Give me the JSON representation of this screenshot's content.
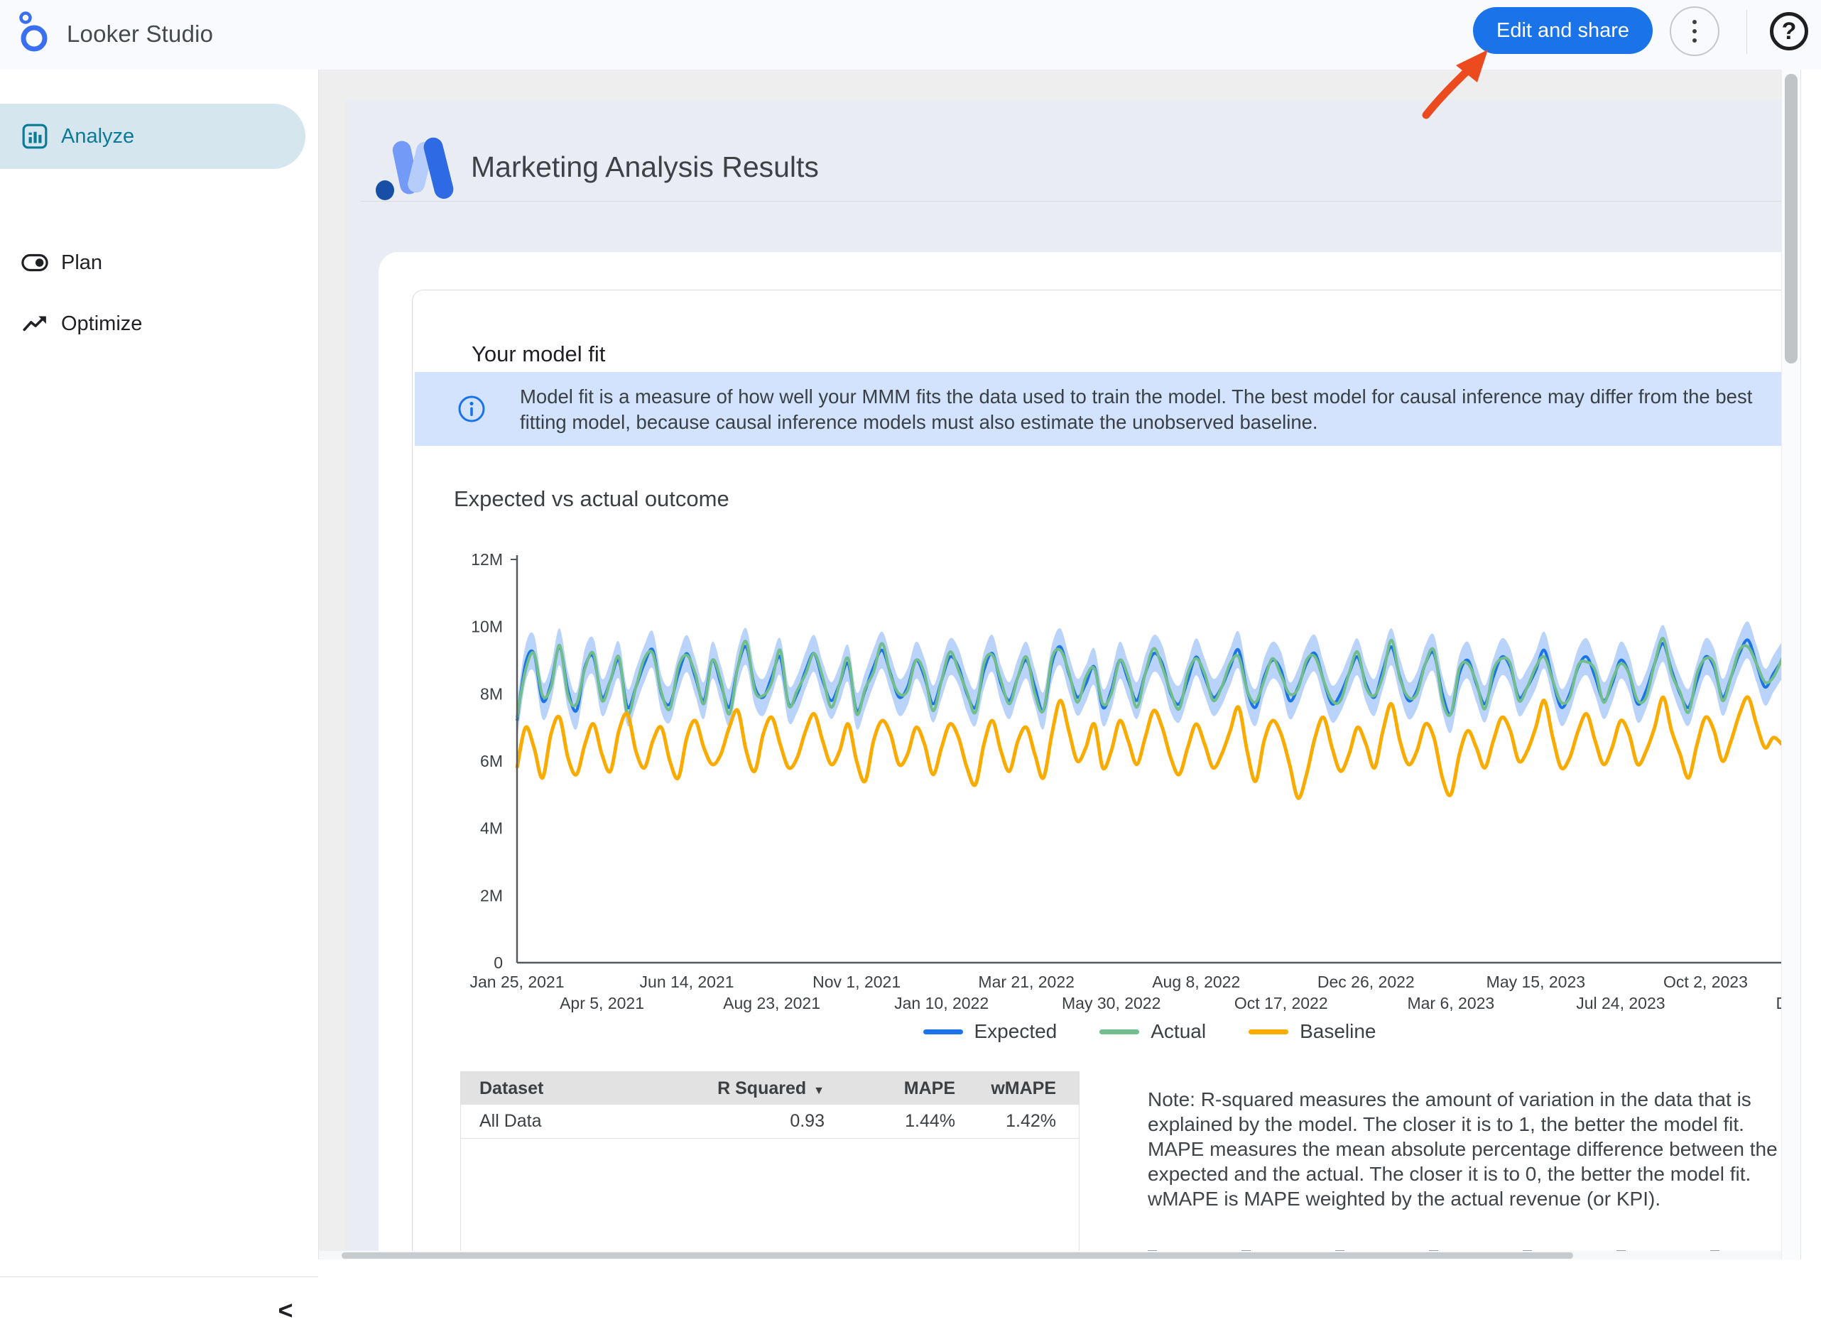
{
  "topbar": {
    "app_title": "Looker Studio",
    "edit_share_label": "Edit and share",
    "help_glyph": "?"
  },
  "sidebar": {
    "items": [
      {
        "label": "Analyze",
        "icon": "bar-chart-icon",
        "selected": true
      },
      {
        "label": "Plan",
        "icon": "toggle-icon",
        "selected": false
      },
      {
        "label": "Optimize",
        "icon": "trending-up-icon",
        "selected": false
      }
    ],
    "collapse_glyph": "<"
  },
  "report": {
    "title": "Marketing Analysis Results"
  },
  "model_fit": {
    "title": "Your model fit",
    "info_text": "Model fit is a measure of how well your MMM fits the data used to train the model. The best model for causal inference may differ from the best fitting model, because causal inference models must also estimate the unobserved baseline."
  },
  "chart_data": {
    "type": "line",
    "title": "Expected vs actual outcome",
    "units": "millions",
    "ylim": [
      0,
      12
    ],
    "y_ticks": [
      "12M",
      "10M",
      "8M",
      "6M",
      "4M",
      "2M",
      "0"
    ],
    "x_ticks_row1": {
      "week_index": [
        0,
        20,
        40,
        60,
        80,
        100,
        120,
        140
      ],
      "labels": [
        "Jan 25, 2021",
        "Jun 14, 2021",
        "Nov 1, 2021",
        "Mar 21, 2022",
        "Aug 8, 2022",
        "Dec 26, 2022",
        "May 15, 2023",
        "Oct 2, 2023"
      ]
    },
    "x_ticks_row2": {
      "week_index": [
        10,
        30,
        50,
        70,
        90,
        110,
        130,
        150
      ],
      "labels": [
        "Apr 5, 2021",
        "Aug 23, 2021",
        "Jan 10, 2022",
        "May 30, 2022",
        "Oct 17, 2022",
        "Mar 6, 2023",
        "Jul 24, 2023",
        "Dec"
      ]
    },
    "legend": [
      {
        "name": "Expected",
        "color": "#1a73e8"
      },
      {
        "name": "Actual",
        "color": "#71bd8c"
      },
      {
        "name": "Baseline",
        "color": "#f9ab00"
      }
    ],
    "ci_band": {
      "around": "Expected",
      "half_width": 0.55,
      "color": "#aecbfa",
      "opacity": 0.85
    },
    "series": [
      {
        "name": "Expected",
        "color": "#1a73e8",
        "values": [
          7.2,
          8.9,
          9.2,
          7.8,
          8.3,
          9.4,
          8.1,
          7.5,
          8.8,
          9.1,
          7.9,
          8.4,
          9.0,
          7.6,
          8.2,
          8.9,
          9.3,
          8.0,
          7.7,
          8.6,
          9.2,
          8.5,
          7.8,
          9.0,
          8.3,
          7.6,
          8.8,
          9.4,
          8.2,
          7.9,
          8.5,
          9.1,
          7.7,
          8.0,
          8.7,
          9.2,
          8.4,
          7.8,
          8.3,
          8.9,
          7.5,
          8.1,
          8.8,
          9.3,
          8.6,
          7.9,
          8.2,
          9.0,
          8.5,
          7.7,
          8.4,
          9.1,
          8.8,
          8.0,
          7.6,
          8.7,
          9.2,
          8.3,
          7.8,
          8.5,
          9.0,
          8.2,
          7.5,
          8.9,
          9.4,
          8.6,
          7.9,
          8.3,
          8.8,
          7.6,
          8.1,
          9.0,
          8.4,
          7.8,
          8.6,
          9.2,
          8.9,
          8.0,
          7.7,
          8.4,
          9.1,
          8.5,
          7.9,
          8.2,
          8.8,
          9.3,
          8.1,
          7.6,
          8.5,
          9.0,
          8.7,
          7.8,
          8.2,
          8.9,
          9.2,
          8.4,
          7.7,
          8.0,
          8.6,
          9.1,
          8.3,
          7.9,
          8.7,
          9.4,
          8.5,
          7.8,
          8.1,
          8.9,
          9.2,
          8.0,
          7.4,
          8.6,
          9.0,
          8.3,
          7.7,
          8.5,
          9.1,
          8.8,
          7.9,
          8.2,
          8.7,
          9.3,
          8.4,
          7.6,
          8.0,
          8.8,
          9.1,
          8.5,
          7.8,
          8.3,
          9.0,
          8.6,
          7.7,
          8.1,
          8.9,
          9.5,
          8.7,
          8.0,
          7.6,
          8.4,
          9.1,
          8.8,
          7.9,
          8.5,
          9.2,
          9.6,
          8.9,
          8.2,
          8.6,
          9.0
        ]
      },
      {
        "name": "Actual",
        "color": "#71bd8c",
        "values": [
          7.3,
          8.7,
          9.2,
          7.95,
          8.2,
          9.45,
          7.95,
          7.7,
          8.75,
          9.2,
          7.8,
          8.4,
          9.1,
          7.4,
          8.2,
          9.05,
          9.2,
          8.05,
          7.55,
          8.8,
          9.15,
          8.6,
          7.7,
          9.0,
          8.4,
          7.4,
          8.8,
          9.55,
          8.1,
          7.95,
          8.35,
          9.3,
          7.65,
          8.1,
          8.6,
          9.2,
          8.5,
          7.6,
          8.3,
          9.05,
          7.4,
          8.15,
          8.65,
          9.5,
          8.55,
          8.0,
          8.1,
          9.0,
          8.6,
          7.5,
          8.4,
          9.25,
          8.7,
          8.05,
          7.45,
          8.9,
          9.15,
          8.4,
          7.7,
          8.5,
          9.1,
          8.0,
          7.5,
          9.05,
          9.3,
          8.65,
          7.75,
          8.5,
          8.75,
          7.7,
          8.0,
          9.0,
          8.5,
          7.6,
          8.6,
          9.35,
          8.8,
          8.05,
          7.55,
          8.6,
          9.05,
          8.6,
          7.8,
          8.2,
          8.9,
          9.1,
          8.1,
          7.75,
          8.4,
          9.05,
          8.55,
          8.0,
          8.15,
          9.0,
          9.1,
          8.4,
          7.8,
          7.8,
          8.6,
          9.25,
          8.2,
          7.95,
          8.55,
          9.6,
          8.45,
          7.9,
          8.0,
          8.9,
          9.3,
          7.8,
          7.4,
          8.75,
          8.9,
          8.35,
          7.55,
          8.7,
          9.05,
          8.9,
          7.8,
          8.2,
          8.8,
          9.1,
          8.4,
          7.75,
          7.9,
          8.85,
          8.95,
          8.7,
          7.75,
          8.4,
          8.9,
          8.6,
          7.8,
          7.9,
          8.9,
          9.65,
          8.6,
          8.05,
          7.45,
          8.6,
          9.05,
          8.9,
          7.8,
          8.5,
          9.3,
          9.4,
          8.9,
          8.35,
          8.5,
          9.05
        ]
      },
      {
        "name": "Baseline",
        "color": "#f9ab00",
        "values": [
          5.8,
          7.0,
          6.4,
          5.5,
          6.8,
          7.3,
          6.1,
          5.6,
          6.5,
          7.1,
          6.2,
          5.7,
          6.9,
          7.4,
          6.3,
          5.8,
          6.6,
          7.0,
          6.0,
          5.5,
          6.7,
          7.2,
          6.4,
          5.9,
          6.2,
          7.0,
          7.5,
          6.3,
          5.7,
          6.8,
          7.3,
          6.5,
          5.8,
          6.1,
          6.9,
          7.4,
          6.6,
          5.9,
          6.3,
          7.1,
          6.0,
          5.4,
          6.6,
          7.2,
          6.8,
          5.9,
          6.2,
          7.0,
          6.5,
          5.6,
          6.4,
          7.1,
          6.7,
          5.8,
          5.3,
          6.5,
          7.2,
          6.3,
          5.7,
          6.6,
          7.0,
          6.2,
          5.5,
          6.8,
          7.8,
          6.9,
          6.0,
          6.4,
          7.1,
          5.8,
          6.3,
          7.2,
          6.6,
          5.9,
          6.7,
          7.5,
          7.0,
          6.1,
          5.6,
          6.4,
          7.1,
          6.5,
          5.8,
          6.2,
          6.9,
          7.6,
          6.3,
          5.4,
          6.6,
          7.2,
          6.8,
          5.9,
          4.9,
          5.6,
          6.7,
          7.3,
          6.4,
          5.7,
          6.2,
          7.0,
          6.5,
          5.8,
          6.9,
          7.7,
          6.6,
          5.9,
          6.3,
          7.1,
          6.7,
          5.5,
          5.0,
          6.2,
          6.9,
          6.4,
          5.8,
          6.6,
          7.3,
          6.9,
          6.0,
          6.3,
          7.0,
          7.8,
          6.7,
          5.8,
          6.1,
          6.9,
          7.4,
          6.6,
          5.9,
          6.4,
          7.2,
          6.8,
          5.9,
          6.3,
          7.0,
          7.9,
          6.9,
          6.2,
          5.5,
          6.5,
          7.3,
          6.9,
          6.0,
          6.6,
          7.4,
          7.9,
          7.1,
          6.4,
          6.7,
          6.5
        ]
      }
    ]
  },
  "table": {
    "headers": [
      "Dataset",
      "R Squared",
      "MAPE",
      "wMAPE"
    ],
    "sort_column": "R Squared",
    "sort_indicator": "▼",
    "rows": [
      [
        "All Data",
        "0.93",
        "1.44%",
        "1.42%"
      ]
    ]
  },
  "note": "Note: R-squared measures the amount of variation in the data that is explained by the model. The closer it is to 1, the better the model fit. MAPE measures the mean absolute percentage difference between the expected and the actual. The closer it is to 0, the better the model fit. wMAPE is MAPE weighted by the actual revenue (or KPI).",
  "colors": {
    "accent_blue": "#1a73e8",
    "selected_nav_bg": "#d6e6ee",
    "selected_nav_text": "#0b7a99",
    "info_banner_bg": "#d3e3fd",
    "page_bg": "#e9edf3",
    "annotation_arrow": "#eb4b1e"
  }
}
